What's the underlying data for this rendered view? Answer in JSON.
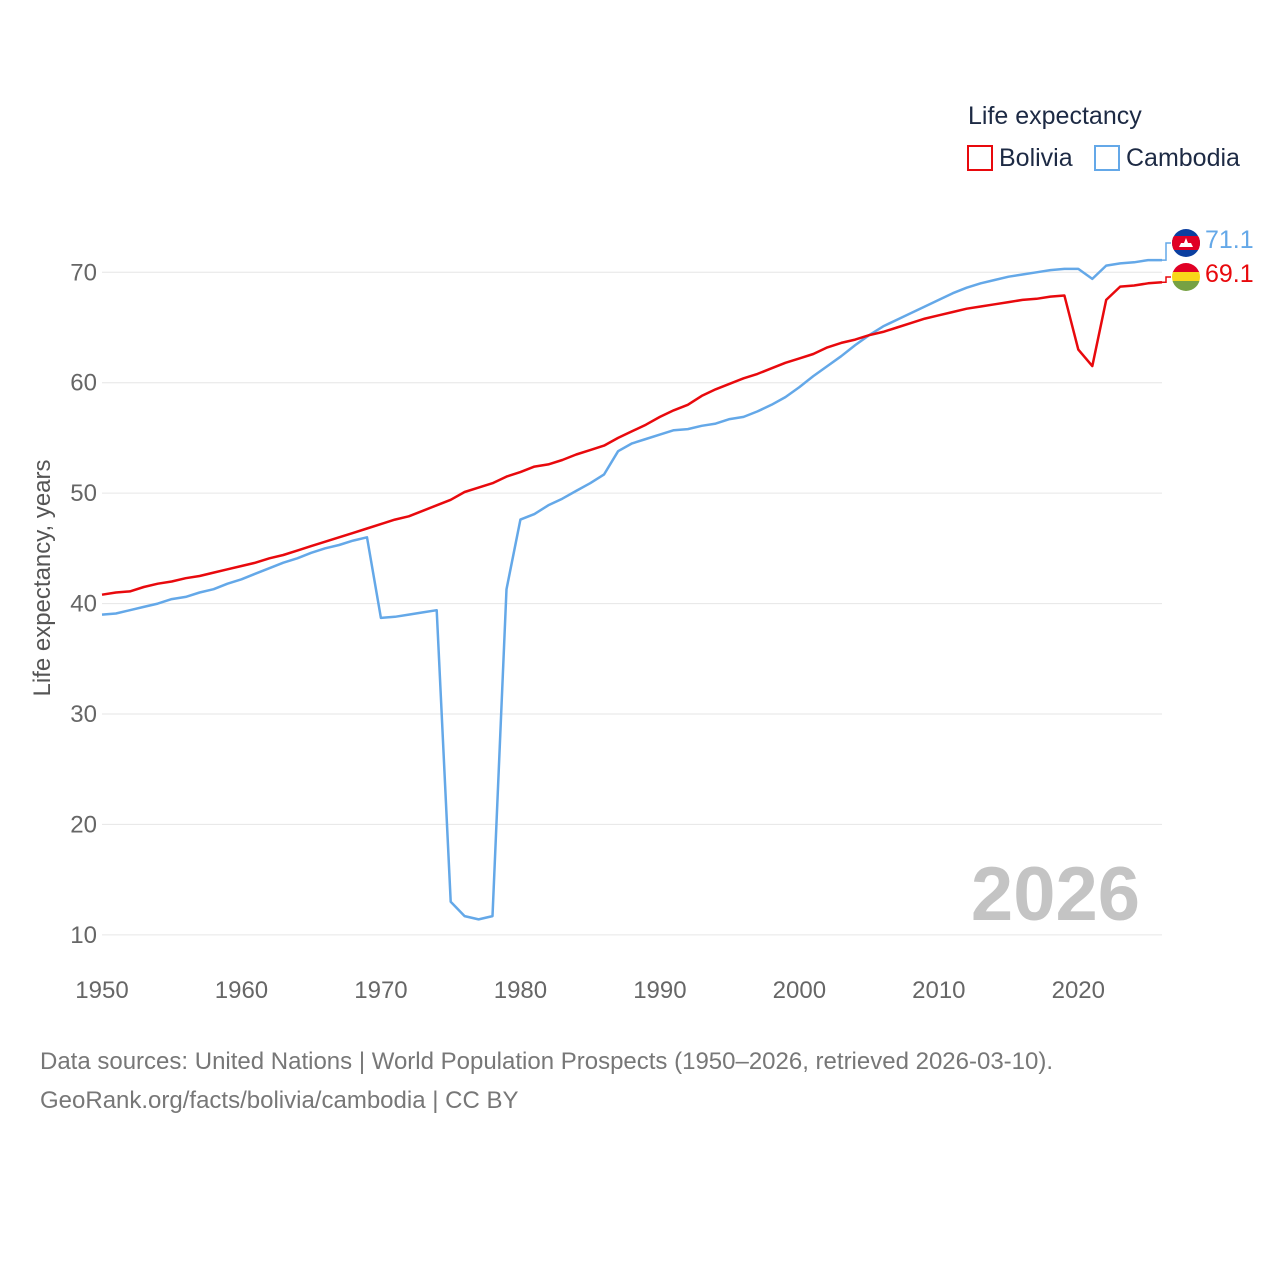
{
  "chart_data": {
    "type": "line",
    "title": "",
    "legend_title": "Life expectancy",
    "xlabel": "",
    "ylabel": "Life expectancy, years",
    "xlim": [
      1950,
      2026
    ],
    "ylim": [
      7,
      76
    ],
    "x_ticks": [
      1950,
      1960,
      1970,
      1980,
      1990,
      2000,
      2010,
      2020
    ],
    "y_ticks": [
      10,
      20,
      30,
      40,
      50,
      60,
      70
    ],
    "grid": true,
    "legend_position": "top-right",
    "year_label": "2026",
    "x": [
      1950,
      1951,
      1952,
      1953,
      1954,
      1955,
      1956,
      1957,
      1958,
      1959,
      1960,
      1961,
      1962,
      1963,
      1964,
      1965,
      1966,
      1967,
      1968,
      1969,
      1970,
      1971,
      1972,
      1973,
      1974,
      1975,
      1976,
      1977,
      1978,
      1979,
      1980,
      1981,
      1982,
      1983,
      1984,
      1985,
      1986,
      1987,
      1988,
      1989,
      1990,
      1991,
      1992,
      1993,
      1994,
      1995,
      1996,
      1997,
      1998,
      1999,
      2000,
      2001,
      2002,
      2003,
      2004,
      2005,
      2006,
      2007,
      2008,
      2009,
      2010,
      2011,
      2012,
      2013,
      2014,
      2015,
      2016,
      2017,
      2018,
      2019,
      2020,
      2021,
      2022,
      2023,
      2024,
      2025,
      2026
    ],
    "series": [
      {
        "name": "Bolivia",
        "color": "#e8090d",
        "end_label": "69.1",
        "values": [
          40.8,
          41.0,
          41.1,
          41.5,
          41.8,
          42.0,
          42.3,
          42.5,
          42.8,
          43.1,
          43.4,
          43.7,
          44.1,
          44.4,
          44.8,
          45.2,
          45.6,
          46.0,
          46.4,
          46.8,
          47.2,
          47.6,
          47.9,
          48.4,
          48.9,
          49.4,
          50.1,
          50.5,
          50.9,
          51.5,
          51.9,
          52.4,
          52.6,
          53.0,
          53.5,
          53.9,
          54.3,
          55.0,
          55.6,
          56.2,
          56.9,
          57.5,
          58.0,
          58.8,
          59.4,
          59.9,
          60.4,
          60.8,
          61.3,
          61.8,
          62.2,
          62.6,
          63.2,
          63.6,
          63.9,
          64.3,
          64.6,
          65.0,
          65.4,
          65.8,
          66.1,
          66.4,
          66.7,
          66.9,
          67.1,
          67.3,
          67.5,
          67.6,
          67.8,
          67.9,
          63.0,
          61.5,
          67.5,
          68.7,
          68.8,
          69.0,
          69.1
        ]
      },
      {
        "name": "Cambodia",
        "color": "#64a8e8",
        "end_label": "71.1",
        "values": [
          39.0,
          39.1,
          39.4,
          39.7,
          40.0,
          40.4,
          40.6,
          41.0,
          41.3,
          41.8,
          42.2,
          42.7,
          43.2,
          43.7,
          44.1,
          44.6,
          45.0,
          45.3,
          45.7,
          46.0,
          38.7,
          38.8,
          39.0,
          39.2,
          39.4,
          13.0,
          11.7,
          11.4,
          11.7,
          41.3,
          47.6,
          48.1,
          48.9,
          49.5,
          50.2,
          50.9,
          51.7,
          53.8,
          54.5,
          54.9,
          55.3,
          55.7,
          55.8,
          56.1,
          56.3,
          56.7,
          56.9,
          57.4,
          58.0,
          58.7,
          59.6,
          60.6,
          61.5,
          62.4,
          63.4,
          64.3,
          65.1,
          65.7,
          66.3,
          66.9,
          67.5,
          68.1,
          68.6,
          69.0,
          69.3,
          69.6,
          69.8,
          70.0,
          70.2,
          70.3,
          70.3,
          69.4,
          70.6,
          70.8,
          70.9,
          71.1,
          71.1
        ]
      }
    ]
  },
  "footer": {
    "source_line": "Data sources: United Nations | World Population Prospects (1950–2026, retrieved 2026-03-10).",
    "url_line": "GeoRank.org/facts/bolivia/cambodia | CC BY"
  }
}
